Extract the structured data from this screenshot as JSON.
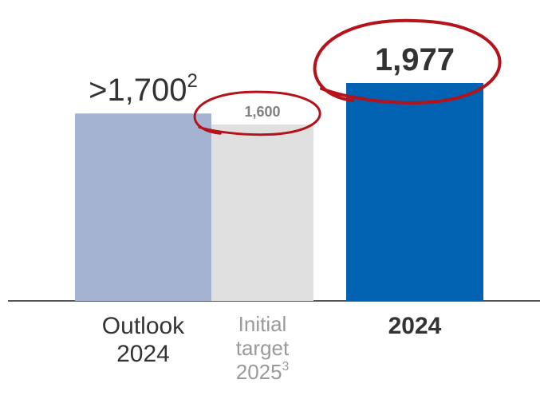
{
  "chart_data": {
    "type": "bar",
    "categories": [
      "Outlook 2024",
      "Initial target 2025",
      "2024"
    ],
    "category_superscripts": [
      null,
      "3",
      null
    ],
    "values": [
      1700,
      1600,
      1977
    ],
    "value_labels": [
      ">1,700",
      "1,600",
      "1,977"
    ],
    "value_label_superscripts": [
      "2",
      null,
      null
    ],
    "colors": [
      "#a3b3d0",
      "#e0e0e0",
      "#0062b0"
    ]
  }
}
